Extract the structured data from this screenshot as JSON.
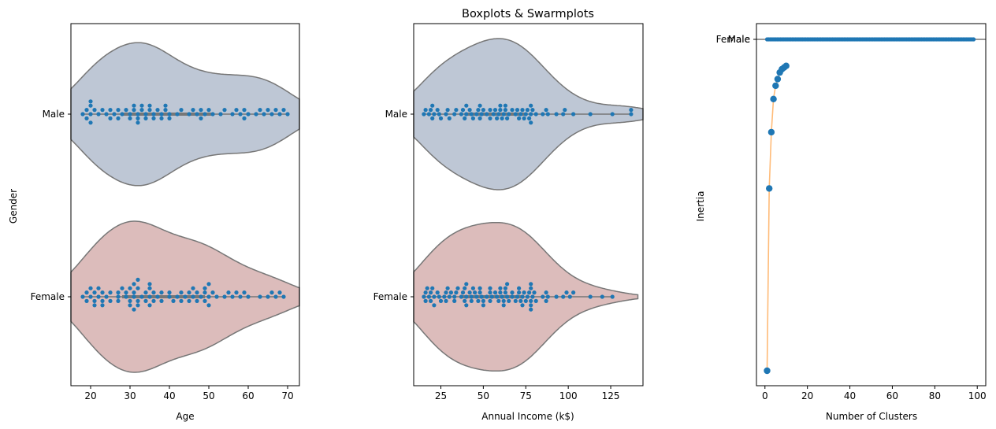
{
  "colors": {
    "violin_male": "#bec7d5",
    "violin_female": "#dcbcbb",
    "violin_edge": "#777777",
    "points": "#1f77b4",
    "line": "#ffbb78"
  },
  "chart_data": [
    {
      "type": "violin+swarm",
      "title": "",
      "xlabel": "Age",
      "ylabel": "Gender",
      "xlim": [
        15,
        73
      ],
      "x_ticks": [
        20,
        30,
        40,
        50,
        60,
        70
      ],
      "categories": [
        "Male",
        "Female"
      ],
      "grid": false,
      "violin_extent": {
        "Male": [
          15,
          73
        ],
        "Female": [
          15,
          73
        ]
      },
      "series": [
        {
          "category": "Male",
          "values": [
            18,
            19,
            19,
            20,
            20,
            20,
            20,
            21,
            22,
            23,
            24,
            25,
            25,
            26,
            27,
            27,
            28,
            29,
            30,
            30,
            31,
            31,
            32,
            32,
            32,
            33,
            33,
            34,
            34,
            35,
            35,
            36,
            36,
            37,
            38,
            38,
            39,
            39,
            40,
            40,
            42,
            43,
            45,
            46,
            47,
            48,
            48,
            49,
            50,
            51,
            53,
            54,
            56,
            57,
            58,
            59,
            59,
            60,
            62,
            63,
            64,
            65,
            66,
            67,
            68,
            69,
            70
          ]
        },
        {
          "category": "Female",
          "values": [
            18,
            19,
            19,
            20,
            20,
            21,
            21,
            21,
            22,
            22,
            23,
            23,
            23,
            24,
            25,
            25,
            27,
            27,
            27,
            28,
            29,
            29,
            30,
            30,
            30,
            31,
            31,
            31,
            31,
            32,
            32,
            32,
            32,
            33,
            34,
            34,
            35,
            35,
            35,
            35,
            36,
            36,
            37,
            38,
            38,
            40,
            40,
            41,
            42,
            43,
            43,
            44,
            45,
            45,
            46,
            46,
            47,
            47,
            48,
            49,
            49,
            49,
            50,
            50,
            50,
            51,
            52,
            54,
            55,
            56,
            57,
            58,
            59,
            60,
            63,
            65,
            66,
            67,
            68,
            69
          ]
        }
      ]
    },
    {
      "type": "violin+swarm",
      "title": "Boxplots & Swarmplots",
      "xlabel": "Annual Income (k$)",
      "ylabel": "",
      "xlim": [
        9,
        144
      ],
      "x_ticks": [
        25,
        50,
        75,
        100,
        125
      ],
      "categories": [
        "Male",
        "Female"
      ],
      "grid": false,
      "violin_extent": {
        "Male": [
          9,
          144
        ],
        "Female": [
          9,
          141
        ]
      },
      "series": [
        {
          "category": "Male",
          "values": [
            15,
            16,
            18,
            19,
            20,
            20,
            21,
            23,
            24,
            25,
            28,
            29,
            30,
            33,
            34,
            37,
            38,
            39,
            40,
            40,
            42,
            43,
            44,
            46,
            47,
            48,
            48,
            49,
            50,
            52,
            54,
            54,
            56,
            57,
            58,
            59,
            60,
            60,
            61,
            62,
            63,
            63,
            64,
            65,
            67,
            69,
            70,
            71,
            72,
            73,
            74,
            75,
            76,
            77,
            78,
            78,
            78,
            79,
            81,
            85,
            87,
            88,
            93,
            97,
            98,
            103,
            113,
            126,
            137,
            137
          ]
        },
        {
          "category": "Female",
          "values": [
            15,
            16,
            16,
            17,
            18,
            19,
            19,
            20,
            21,
            21,
            23,
            24,
            25,
            27,
            28,
            28,
            29,
            30,
            31,
            33,
            33,
            34,
            35,
            37,
            38,
            39,
            39,
            40,
            40,
            40,
            42,
            43,
            43,
            44,
            45,
            46,
            47,
            48,
            48,
            49,
            50,
            50,
            52,
            54,
            54,
            54,
            55,
            57,
            58,
            59,
            60,
            60,
            61,
            62,
            62,
            63,
            63,
            64,
            64,
            65,
            67,
            67,
            69,
            70,
            71,
            71,
            72,
            73,
            73,
            74,
            75,
            76,
            77,
            78,
            78,
            78,
            78,
            78,
            79,
            80,
            81,
            85,
            87,
            87,
            88,
            93,
            97,
            99,
            101,
            103,
            113,
            120,
            126
          ]
        }
      ]
    },
    {
      "type": "line+scatter",
      "title": "",
      "xlabel": "Number of Clusters",
      "ylabel": "Inertia",
      "xlim": [
        -4,
        104
      ],
      "x_ticks": [
        0,
        20,
        40,
        60,
        80,
        100
      ],
      "y_tick_labels": [
        "Female",
        "Male"
      ],
      "grid": false,
      "series": [
        {
          "kind": "elbow",
          "x": [
            1,
            2,
            3,
            4,
            5,
            6,
            7,
            8,
            9,
            10
          ],
          "y": [
            0.0,
            0.55,
            0.72,
            0.82,
            0.86,
            0.88,
            0.9,
            0.91,
            0.915,
            0.92
          ]
        },
        {
          "kind": "strip",
          "y": 1.0,
          "x_range": [
            1,
            99
          ]
        }
      ]
    }
  ]
}
